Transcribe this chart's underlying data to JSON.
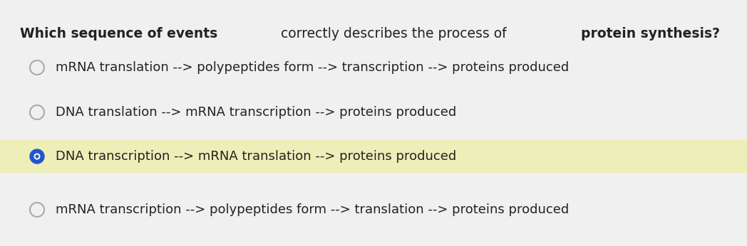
{
  "title_parts": [
    {
      "text": "Which sequence of events",
      "bold": true
    },
    {
      "text": " correctly describes the process of ",
      "bold": false
    },
    {
      "text": "protein synthesis?",
      "bold": true
    }
  ],
  "options": [
    {
      "text": "mRNA translation --> polypeptides form --> transcription --> proteins produced",
      "selected": false,
      "highlighted": false
    },
    {
      "text": "DNA translation --> mRNA transcription --> proteins produced",
      "selected": false,
      "highlighted": false
    },
    {
      "text": "DNA transcription --> mRNA translation --> proteins produced",
      "selected": true,
      "highlighted": true
    },
    {
      "text": "mRNA transcription --> polypeptides form --> translation --> proteins produced",
      "selected": false,
      "highlighted": false
    }
  ],
  "bg_color": "#f0f0f0",
  "highlight_color": "#eeeeb8",
  "selected_circle_color": "#2255cc",
  "selected_circle_border": "#1a44aa",
  "unselected_circle_color": "#aaaaaa",
  "text_color": "#222222",
  "title_fontsize": 13.5,
  "option_fontsize": 13.0,
  "fig_width": 10.48,
  "fig_height": 3.46,
  "dpi": 100
}
